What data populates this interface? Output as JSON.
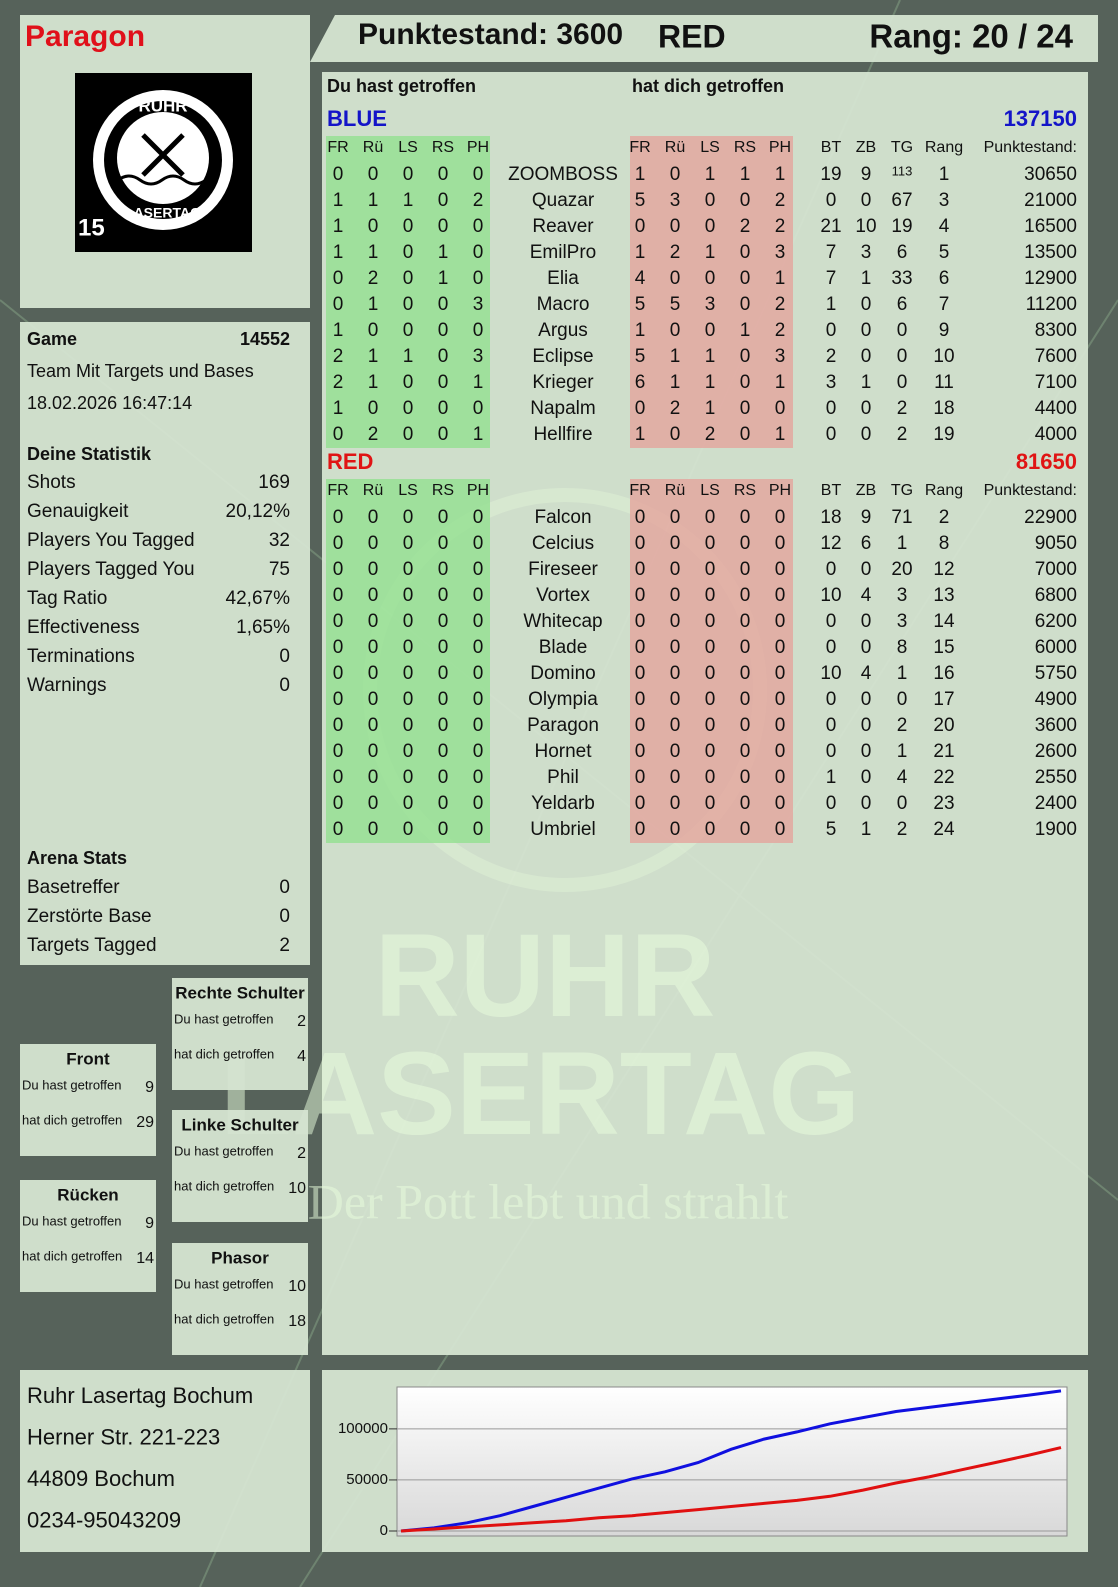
{
  "header": {
    "player": "Paragon",
    "score": "Punktestand: 3600",
    "team": "RED",
    "rank": "Rang: 20 / 24"
  },
  "logo": {
    "top": "RUHR",
    "bottom": "LASERTAG",
    "badge": "15"
  },
  "game": {
    "label": "Game",
    "id": 14552,
    "mode": "Team Mit Targets und Bases",
    "date": "18.02.2026 16:47:14"
  },
  "stats": {
    "title": "Deine Statistik",
    "rows": [
      {
        "label": "Shots",
        "value": 169
      },
      {
        "label": "Genauigkeit",
        "value": "20,12%"
      },
      {
        "label": "Players You Tagged",
        "value": 32
      },
      {
        "label": "Players Tagged You",
        "value": 75
      },
      {
        "label": "Tag Ratio",
        "value": "42,67%"
      },
      {
        "label": "Effectiveness",
        "value": "1,65%"
      },
      {
        "label": "Terminations",
        "value": 0
      },
      {
        "label": "Warnings",
        "value": 0
      }
    ]
  },
  "arena": {
    "title": "Arena Stats",
    "rows": [
      {
        "label": "Basetreffer",
        "value": 0
      },
      {
        "label": "Zerstörte Base",
        "value": 0
      },
      {
        "label": "Targets Tagged",
        "value": 2
      }
    ]
  },
  "zones": [
    {
      "title": "Rechte Schulter",
      "rows": [
        {
          "label": "Du hast getroffen",
          "value": 2
        },
        {
          "label": "hat dich getroffen",
          "value": 4
        }
      ]
    },
    {
      "title": "Front",
      "rows": [
        {
          "label": "Du hast getroffen",
          "value": 9
        },
        {
          "label": "hat dich getroffen",
          "value": 29
        }
      ]
    },
    {
      "title": "Linke Schulter",
      "rows": [
        {
          "label": "Du hast getroffen",
          "value": 2
        },
        {
          "label": "hat dich getroffen",
          "value": 10
        }
      ]
    },
    {
      "title": "Rücken",
      "rows": [
        {
          "label": "Du hast getroffen",
          "value": 9
        },
        {
          "label": "hat dich getroffen",
          "value": 14
        }
      ]
    },
    {
      "title": "Phasor",
      "rows": [
        {
          "label": "Du hast getroffen",
          "value": 10
        },
        {
          "label": "hat dich getroffen",
          "value": 18
        }
      ]
    }
  ],
  "address": [
    "Ruhr Lasertag Bochum",
    "Herner Str. 221-223",
    "44809 Bochum",
    "0234-95043209"
  ],
  "watermark": {
    "line1": "RUHR",
    "line2": "LASERTAG",
    "tagline": "Der Pott lebt und strahlt"
  },
  "table": {
    "hit_label": "Du hast getroffen",
    "hit_by_label": "hat dich getroffen",
    "columns": [
      "FR",
      "Rü",
      "LS",
      "RS",
      "PH",
      "FR",
      "Rü",
      "LS",
      "RS",
      "PH",
      "BT",
      "ZB",
      "TG",
      "Rang",
      "Punktestand:"
    ],
    "teams": [
      {
        "name": "BLUE",
        "total": 137150,
        "color": "#1414c8",
        "players": [
          [
            "ZOOMBOSS",
            0,
            0,
            0,
            0,
            0,
            1,
            0,
            1,
            1,
            1,
            19,
            9,
            113,
            1,
            30650
          ],
          [
            "Quazar",
            1,
            1,
            1,
            0,
            2,
            5,
            3,
            0,
            0,
            2,
            0,
            0,
            67,
            3,
            21000
          ],
          [
            "Reaver",
            1,
            0,
            0,
            0,
            0,
            0,
            0,
            0,
            2,
            2,
            21,
            10,
            19,
            4,
            16500
          ],
          [
            "EmilPro",
            1,
            1,
            0,
            1,
            0,
            1,
            2,
            1,
            0,
            3,
            7,
            3,
            6,
            5,
            13500
          ],
          [
            "Elia",
            0,
            2,
            0,
            1,
            0,
            4,
            0,
            0,
            0,
            1,
            7,
            1,
            33,
            6,
            12900
          ],
          [
            "Macro",
            0,
            1,
            0,
            0,
            3,
            5,
            5,
            3,
            0,
            2,
            1,
            0,
            6,
            7,
            11200
          ],
          [
            "Argus",
            1,
            0,
            0,
            0,
            0,
            1,
            0,
            0,
            1,
            2,
            0,
            0,
            0,
            9,
            8300
          ],
          [
            "Eclipse",
            2,
            1,
            1,
            0,
            3,
            5,
            1,
            1,
            0,
            3,
            2,
            0,
            0,
            10,
            7600
          ],
          [
            "Krieger",
            2,
            1,
            0,
            0,
            1,
            6,
            1,
            1,
            0,
            1,
            3,
            1,
            0,
            11,
            7100
          ],
          [
            "Napalm",
            1,
            0,
            0,
            0,
            0,
            0,
            2,
            1,
            0,
            0,
            0,
            0,
            2,
            18,
            4400
          ],
          [
            "Hellfire",
            0,
            2,
            0,
            0,
            1,
            1,
            0,
            2,
            0,
            1,
            0,
            0,
            2,
            19,
            4000
          ]
        ]
      },
      {
        "name": "RED",
        "total": 81650,
        "color": "#e01414",
        "players": [
          [
            "Falcon",
            0,
            0,
            0,
            0,
            0,
            0,
            0,
            0,
            0,
            0,
            18,
            9,
            71,
            2,
            22900
          ],
          [
            "Celcius",
            0,
            0,
            0,
            0,
            0,
            0,
            0,
            0,
            0,
            0,
            12,
            6,
            1,
            8,
            9050
          ],
          [
            "Fireseer",
            0,
            0,
            0,
            0,
            0,
            0,
            0,
            0,
            0,
            0,
            0,
            0,
            20,
            12,
            7000
          ],
          [
            "Vortex",
            0,
            0,
            0,
            0,
            0,
            0,
            0,
            0,
            0,
            0,
            10,
            4,
            3,
            13,
            6800
          ],
          [
            "Whitecap",
            0,
            0,
            0,
            0,
            0,
            0,
            0,
            0,
            0,
            0,
            0,
            0,
            3,
            14,
            6200
          ],
          [
            "Blade",
            0,
            0,
            0,
            0,
            0,
            0,
            0,
            0,
            0,
            0,
            0,
            0,
            8,
            15,
            6000
          ],
          [
            "Domino",
            0,
            0,
            0,
            0,
            0,
            0,
            0,
            0,
            0,
            0,
            10,
            4,
            1,
            16,
            5750
          ],
          [
            "Olympia",
            0,
            0,
            0,
            0,
            0,
            0,
            0,
            0,
            0,
            0,
            0,
            0,
            0,
            17,
            4900
          ],
          [
            "Paragon",
            0,
            0,
            0,
            0,
            0,
            0,
            0,
            0,
            0,
            0,
            0,
            0,
            2,
            20,
            3600
          ],
          [
            "Hornet",
            0,
            0,
            0,
            0,
            0,
            0,
            0,
            0,
            0,
            0,
            0,
            0,
            1,
            21,
            2600
          ],
          [
            "Phil",
            0,
            0,
            0,
            0,
            0,
            0,
            0,
            0,
            0,
            0,
            1,
            0,
            4,
            22,
            2550
          ],
          [
            "Yeldarb",
            0,
            0,
            0,
            0,
            0,
            0,
            0,
            0,
            0,
            0,
            0,
            0,
            0,
            23,
            2400
          ],
          [
            "Umbriel",
            0,
            0,
            0,
            0,
            0,
            0,
            0,
            0,
            0,
            0,
            5,
            1,
            2,
            24,
            1900
          ]
        ]
      }
    ]
  },
  "chart_data": {
    "type": "line",
    "series": [
      {
        "color": "#1010e0",
        "values": [
          0,
          3000,
          8000,
          15000,
          24000,
          33000,
          42000,
          51000,
          58000,
          67000,
          80000,
          90000,
          97000,
          105000,
          111000,
          117000,
          121000,
          125000,
          129000,
          133000,
          137150
        ]
      },
      {
        "color": "#e01010",
        "values": [
          0,
          2000,
          4000,
          6000,
          8000,
          10000,
          13000,
          15000,
          18000,
          21000,
          24000,
          27000,
          30000,
          34000,
          40000,
          47000,
          53000,
          60000,
          67000,
          74000,
          81650
        ]
      }
    ],
    "ylim": [
      0,
      141000
    ],
    "yticks": [
      0,
      50000,
      100000
    ],
    "grid": true
  }
}
